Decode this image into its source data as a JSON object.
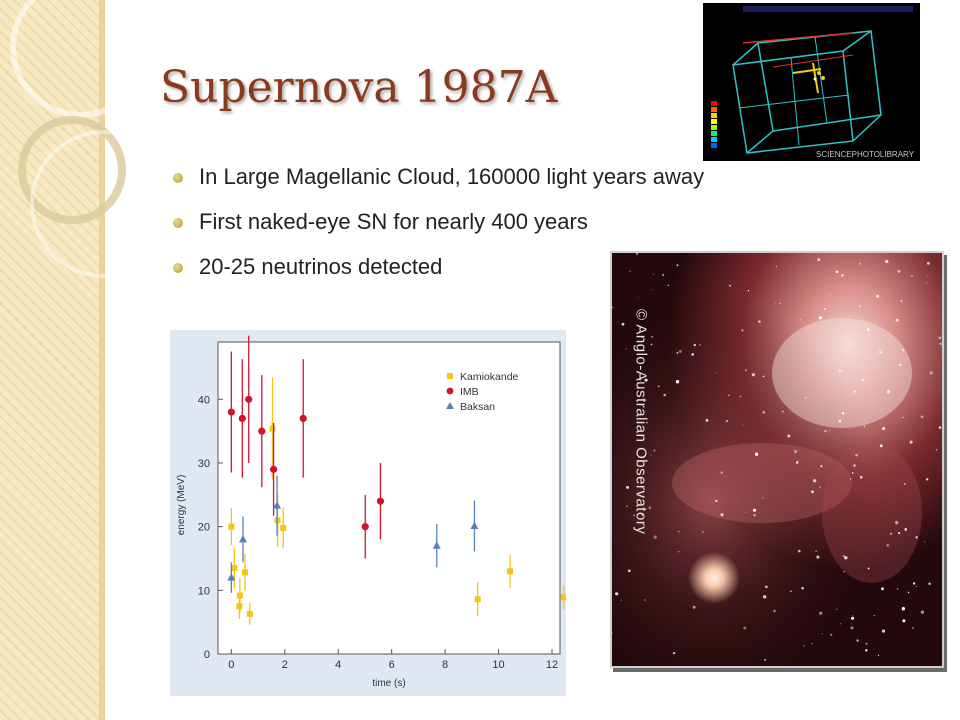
{
  "slide": {
    "title": "Supernova 1987A",
    "bullets": [
      "In Large Magellanic Cloud, 160000 light years away",
      "First naked-eye SN for nearly 400 years",
      "20-25 neutrinos detected"
    ]
  },
  "images": {
    "detector_credit": "SCIENCEPHOTOLIBRARY",
    "nebula_credit": "© Anglo-Australian Observatory"
  },
  "colors": {
    "title": "#8a3a1e",
    "kamiokande": "#f5c518",
    "imb": "#d0142c",
    "baksan": "#5b7fb8"
  },
  "chart_data": {
    "type": "scatter",
    "xlabel": "time (s)",
    "ylabel": "energy (MeV)",
    "xlim": [
      -0.5,
      12.3
    ],
    "ylim": [
      0,
      49
    ],
    "xticks": [
      0,
      2,
      4,
      6,
      8,
      10,
      12
    ],
    "yticks": [
      0,
      10,
      20,
      30,
      40
    ],
    "grid": false,
    "legend_position": "top-right",
    "series": [
      {
        "name": "Kamiokande",
        "marker": "square",
        "color": "#f5c518",
        "points": [
          {
            "x": 0.0,
            "y": 20.0,
            "err": 2.9
          },
          {
            "x": 0.11,
            "y": 13.5,
            "err": 3.2
          },
          {
            "x": 0.3,
            "y": 7.5,
            "err": 2.0
          },
          {
            "x": 0.32,
            "y": 9.2,
            "err": 2.7
          },
          {
            "x": 0.51,
            "y": 12.8,
            "err": 2.9
          },
          {
            "x": 0.69,
            "y": 6.3,
            "err": 1.7
          },
          {
            "x": 1.54,
            "y": 35.4,
            "err": 8.0
          },
          {
            "x": 1.73,
            "y": 21.0,
            "err": 4.2
          },
          {
            "x": 1.94,
            "y": 19.8,
            "err": 3.2
          },
          {
            "x": 9.22,
            "y": 8.6,
            "err": 2.7
          },
          {
            "x": 10.43,
            "y": 13.0,
            "err": 2.6
          },
          {
            "x": 12.44,
            "y": 8.9,
            "err": 1.9
          }
        ]
      },
      {
        "name": "IMB",
        "color": "#d0142c",
        "marker": "circle",
        "points": [
          {
            "x": 0.0,
            "y": 38,
            "err": 9.5
          },
          {
            "x": 0.41,
            "y": 37,
            "err": 9.3
          },
          {
            "x": 0.65,
            "y": 40,
            "err": 10.0
          },
          {
            "x": 1.14,
            "y": 35,
            "err": 8.8
          },
          {
            "x": 1.58,
            "y": 29,
            "err": 7.3
          },
          {
            "x": 2.69,
            "y": 37,
            "err": 9.3
          },
          {
            "x": 5.01,
            "y": 20,
            "err": 5.0
          },
          {
            "x": 5.58,
            "y": 24,
            "err": 6.0
          }
        ]
      },
      {
        "name": "Baksan",
        "color": "#5b7fb8",
        "marker": "triangle",
        "points": [
          {
            "x": 0.0,
            "y": 12,
            "err": 2.4
          },
          {
            "x": 0.435,
            "y": 18,
            "err": 3.6
          },
          {
            "x": 1.71,
            "y": 23.3,
            "err": 4.7
          },
          {
            "x": 7.687,
            "y": 17,
            "err": 3.4
          },
          {
            "x": 9.099,
            "y": 20.1,
            "err": 4.0
          }
        ]
      }
    ]
  }
}
